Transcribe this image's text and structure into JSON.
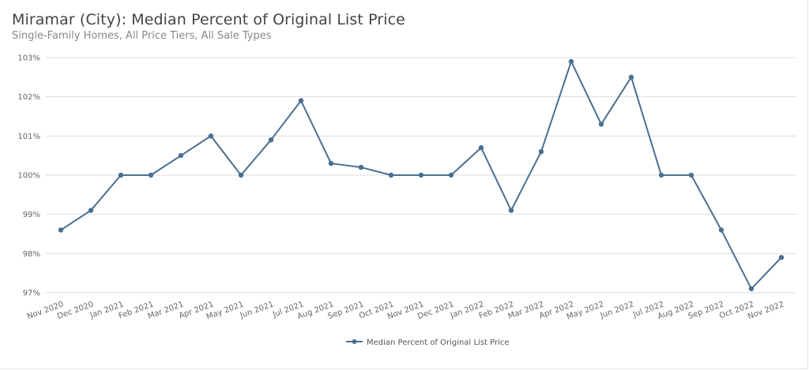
{
  "header": {
    "title": "Miramar (City): Median Percent of Original List Price",
    "subtitle": "Single-Family Homes, All Price Tiers, All Sale Types"
  },
  "legend": {
    "label": "Median Percent of Original List Price"
  },
  "colors": {
    "series": "#4a6f91",
    "grid": "#dddddd",
    "tick_text": "#666666"
  },
  "chart_data": {
    "type": "line",
    "title": "Miramar (City): Median Percent of Original List Price",
    "subtitle": "Single-Family Homes, All Price Tiers, All Sale Types",
    "xlabel": "",
    "ylabel": "",
    "ylim": [
      97,
      103
    ],
    "yticks": [
      "97%",
      "98%",
      "99%",
      "100%",
      "101%",
      "102%",
      "103%"
    ],
    "grid": true,
    "legend_position": "bottom",
    "categories": [
      "Nov 2020",
      "Dec 2020",
      "Jan 2021",
      "Feb 2021",
      "Mar 2021",
      "Apr 2021",
      "May 2021",
      "Jun 2021",
      "Jul 2021",
      "Aug 2021",
      "Sep 2021",
      "Oct 2021",
      "Nov 2021",
      "Dec 2021",
      "Jan 2022",
      "Feb 2022",
      "Mar 2022",
      "Apr 2022",
      "May 2022",
      "Jun 2022",
      "Jul 2022",
      "Aug 2022",
      "Sep 2022",
      "Oct 2022",
      "Nov 2022"
    ],
    "series": [
      {
        "name": "Median Percent of Original List Price",
        "values": [
          98.6,
          99.1,
          100.0,
          100.0,
          100.5,
          101.0,
          100.0,
          100.9,
          101.9,
          100.3,
          100.2,
          100.0,
          100.0,
          100.0,
          100.7,
          99.1,
          100.6,
          102.9,
          101.3,
          102.5,
          100.0,
          100.0,
          98.6,
          97.1,
          97.9
        ]
      }
    ]
  }
}
